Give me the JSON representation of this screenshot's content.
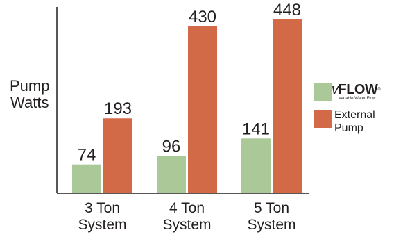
{
  "chart_data": {
    "type": "bar",
    "title": "",
    "xlabel": "",
    "ylabel": "Pump Watts",
    "ylabel_lines": [
      "Pump",
      "Watts"
    ],
    "categories": [
      "3 Ton System",
      "4 Ton System",
      "5 Ton System"
    ],
    "category_lines": [
      [
        "3 Ton",
        "System"
      ],
      [
        "4 Ton",
        "System"
      ],
      [
        "5 Ton",
        "System"
      ]
    ],
    "ylim": [
      0,
      480
    ],
    "grid": false,
    "legend": "right",
    "series": [
      {
        "name": "vFlow Variable Water Flow",
        "color": "#aac898",
        "values": [
          74,
          96,
          141
        ]
      },
      {
        "name": "External Pump",
        "color": "#d26a48",
        "values": [
          193,
          430,
          448
        ]
      }
    ]
  },
  "legend": {
    "vflow": {
      "word_v": "v",
      "word_rest": "FLOW",
      "tm": "®",
      "tagline": "Variable Water Flow",
      "color": "#aac898"
    },
    "external": {
      "lines": [
        "External",
        "Pump"
      ],
      "color": "#d26a48"
    }
  }
}
